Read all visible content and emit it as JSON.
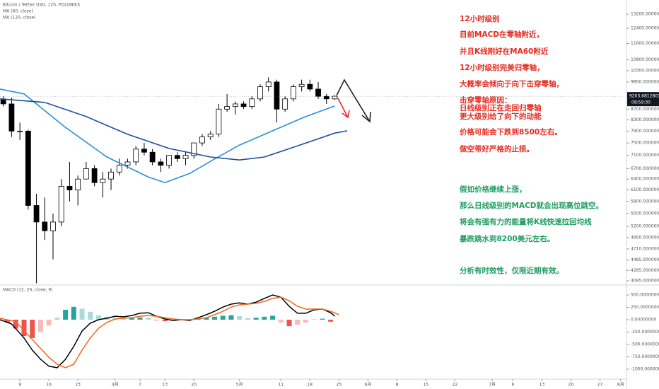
{
  "chart_data": [
    {
      "type": "candlestick",
      "title": "Bitcoin / Tether USD, 12h, POLONIEX",
      "log_scale": true,
      "ylim": [
        4032,
        14045
      ],
      "yticks": [
        {
          "value": 4095,
          "label": "4095.00000000"
        },
        {
          "value": 4285,
          "label": "4285.00000000"
        },
        {
          "value": 4485,
          "label": "4485.00000000"
        },
        {
          "value": 4710,
          "label": "4710.00000000"
        },
        {
          "value": 4950,
          "label": "4950.00000000"
        },
        {
          "value": 5200,
          "label": "5200.00000000"
        },
        {
          "value": 5500,
          "label": "5500.00000000"
        },
        {
          "value": 5800,
          "label": "5800.00000000"
        },
        {
          "value": 6100,
          "label": "6100.00000000"
        },
        {
          "value": 6400,
          "label": "6400.00000000"
        },
        {
          "value": 6700,
          "label": "6700.00000000"
        },
        {
          "value": 7100,
          "label": "7100.00000000"
        },
        {
          "value": 7500,
          "label": "7500.00000000"
        },
        {
          "value": 7900,
          "label": "7900.00000000"
        },
        {
          "value": 8300,
          "label": "8300.00000000"
        },
        {
          "value": 8700,
          "label": "8700.00000000"
        },
        {
          "value": 9800,
          "label": "9800.00000000"
        },
        {
          "value": 10300,
          "label": "10300.00000000"
        },
        {
          "value": 10800,
          "label": "10800.00000000"
        },
        {
          "value": 11600,
          "label": "11600.00000000"
        },
        {
          "value": 12400,
          "label": "12400.00000000"
        },
        {
          "value": 13200,
          "label": "13200.00000000"
        }
      ],
      "x": [
        5,
        7,
        9,
        11,
        13,
        15,
        17,
        19,
        21,
        23,
        25,
        27,
        29,
        31,
        33,
        35,
        37,
        39,
        41,
        43,
        45,
        47,
        49,
        51,
        53,
        55,
        57,
        59,
        61,
        63,
        65,
        67,
        69,
        71,
        73,
        75,
        77,
        79,
        81,
        83,
        85
      ],
      "open": [
        9100,
        8900,
        7900,
        7900,
        5700,
        5300,
        5100,
        5300,
        6200,
        6100,
        6400,
        6700,
        6300,
        6400,
        6600,
        6800,
        6900,
        7300,
        7200,
        6900,
        6800,
        7100,
        7000,
        7100,
        7500,
        7700,
        7800,
        8700,
        8800,
        8900,
        8800,
        9100,
        9600,
        9800,
        8700,
        9100,
        9600,
        9700,
        9500,
        9200,
        9100
      ],
      "high": [
        9200,
        9150,
        8200,
        7950,
        6000,
        5900,
        5500,
        6400,
        6900,
        6500,
        6900,
        6800,
        6600,
        6700,
        7000,
        7000,
        7400,
        7500,
        7300,
        7000,
        7100,
        7200,
        7200,
        7500,
        7800,
        7900,
        8900,
        9300,
        9000,
        9000,
        9200,
        9700,
        10000,
        9900,
        9200,
        9700,
        9900,
        9900,
        9800,
        9300,
        9250
      ],
      "low": [
        8800,
        7700,
        7600,
        5600,
        4050,
        4900,
        4500,
        5200,
        5800,
        5700,
        6400,
        6200,
        5900,
        6100,
        6500,
        6700,
        6800,
        7100,
        6800,
        6600,
        6700,
        6900,
        6800,
        7000,
        7400,
        7600,
        7700,
        8600,
        8500,
        8700,
        8700,
        9000,
        9400,
        8200,
        8600,
        9000,
        9400,
        9400,
        9100,
        8900,
        9050
      ],
      "close": [
        8900,
        7900,
        7900,
        5700,
        5300,
        5100,
        5300,
        6200,
        6100,
        6400,
        6700,
        6300,
        6400,
        6600,
        6800,
        6900,
        7300,
        7200,
        6900,
        6800,
        7100,
        7000,
        7100,
        7500,
        7700,
        7800,
        8700,
        8800,
        8900,
        8800,
        9100,
        9600,
        9800,
        8700,
        9100,
        9600,
        9700,
        9500,
        9200,
        9100,
        9204
      ],
      "up_color": "#ffffff",
      "down_color": "#000000",
      "series": [
        {
          "name": "MA (60, close)",
          "color": "#2a8fd6",
          "x": [
            4.2,
            10,
            20,
            30,
            40,
            44,
            50,
            56,
            62,
            70,
            78,
            85
          ],
          "values": [
            9500,
            9300,
            8030,
            7050,
            6460,
            6300,
            6560,
            6990,
            7430,
            7910,
            8420,
            8820
          ]
        },
        {
          "name": "MA (120, close)",
          "color": "#1e4f9c",
          "x": [
            4.2,
            15,
            25,
            35,
            45,
            55,
            62,
            68,
            75,
            85,
            88
          ],
          "values": [
            9100,
            8960,
            8420,
            7790,
            7320,
            7050,
            6960,
            7050,
            7360,
            7830,
            7910
          ]
        }
      ],
      "price_label": 9203.68128014,
      "time_label": "08:59:30",
      "annotations": [
        {
          "text": "12小时级别",
          "color": "#e52b22"
        },
        {
          "text": "目前MACD在零轴附近，",
          "color": "#e52b22"
        },
        {
          "text": "并且K线刚好在MA60附近",
          "color": "#e52b22"
        },
        {
          "text": "12小时级别完美归零轴，",
          "color": "#e52b22"
        },
        {
          "text": "大概率会倾向于向下击穿零轴，",
          "color": "#e52b22"
        },
        {
          "text": "击穿零轴原因：",
          "color": "#e52b22"
        },
        {
          "text": "日线级别正在走回归零轴",
          "color": "#e52b22"
        },
        {
          "text": "更大级别给了向下的动能",
          "color": "#e52b22"
        },
        {
          "text": "价格可能会下跌到8500左右。",
          "color": "#e52b22"
        },
        {
          "text": "做空带好严格的止损。",
          "color": "#e52b22"
        },
        {
          "text": "假如价格继续上涨，",
          "color": "#1f9d62"
        },
        {
          "text": "那么日线级别的MACD就会出现高位跳空。",
          "color": "#1f9d62"
        },
        {
          "text": "将会有强有力的能量将K线快速拉回均线",
          "color": "#1f9d62"
        },
        {
          "text": "暴跌跳水到8200美元左右。",
          "color": "#1f9d62"
        },
        {
          "text": "分析有时效性，仅限近期有效。",
          "color": "#1f9d62"
        }
      ]
    },
    {
      "type": "macd",
      "title": "MACD (12, 26, close, 9)",
      "ylim": [
        -1186,
        686
      ],
      "yticks": [
        {
          "value": 500,
          "label": "500.00000000"
        },
        {
          "value": 250,
          "label": "250.00000000"
        },
        {
          "value": 0,
          "label": "0.00000000"
        },
        {
          "value": -250,
          "label": "-250.00000000"
        },
        {
          "value": -500,
          "label": "-500.00000000"
        },
        {
          "value": -750,
          "label": "-750.00000000"
        },
        {
          "value": -1000,
          "label": "-1000.00000000"
        }
      ],
      "xlim": [
        4.2,
        155.4
      ],
      "xticks": [
        {
          "value": 9,
          "label": "9"
        },
        {
          "value": 16,
          "label": "16"
        },
        {
          "value": 23,
          "label": "23"
        },
        {
          "value": 32,
          "label": "4月"
        },
        {
          "value": 38,
          "label": "7"
        },
        {
          "value": 44,
          "label": "13"
        },
        {
          "value": 51,
          "label": "20"
        },
        {
          "value": 62,
          "label": "5月"
        },
        {
          "value": 72,
          "label": "11"
        },
        {
          "value": 79,
          "label": "18"
        },
        {
          "value": 86,
          "label": "25"
        },
        {
          "value": 93,
          "label": "6月"
        },
        {
          "value": 100,
          "label": "8"
        },
        {
          "value": 107,
          "label": "15"
        },
        {
          "value": 114,
          "label": "22"
        },
        {
          "value": 123,
          "label": "7月"
        },
        {
          "value": 128,
          "label": "6"
        },
        {
          "value": 135,
          "label": "13"
        },
        {
          "value": 142,
          "label": "20"
        },
        {
          "value": 149,
          "label": "27"
        },
        {
          "value": 154,
          "label": "8月"
        }
      ],
      "series": [
        {
          "type": "bar",
          "color": "#26a69a",
          "negative_color": "#ef5350",
          "x": [
            4,
            6,
            8,
            10,
            12,
            14,
            16,
            18,
            20,
            22,
            24,
            26,
            28,
            30,
            32,
            34,
            36,
            38,
            40,
            42,
            44,
            46,
            48,
            50,
            52,
            54,
            56,
            58,
            60,
            62,
            64,
            66,
            68,
            70,
            72,
            74,
            76,
            78,
            80,
            82,
            84
          ],
          "values": [
            -20,
            -60,
            -180,
            -330,
            -370,
            -250,
            -120,
            40,
            200,
            260,
            220,
            160,
            90,
            60,
            30,
            20,
            30,
            45,
            40,
            -20,
            -30,
            -20,
            10,
            -10,
            20,
            40,
            60,
            80,
            90,
            70,
            30,
            40,
            60,
            80,
            -60,
            -130,
            -100,
            -60,
            10,
            20,
            -40
          ]
        },
        {
          "type": "line",
          "color": "#000000",
          "x": [
            4.2,
            7,
            10,
            12,
            14,
            16,
            18,
            20,
            22,
            24,
            26,
            28,
            30,
            32,
            34,
            36,
            38,
            40,
            42,
            44,
            46,
            48,
            50,
            52,
            54,
            56,
            58,
            60,
            62,
            64,
            66,
            68,
            70,
            72,
            74,
            76,
            78,
            80,
            82,
            84,
            85
          ],
          "values": [
            0,
            -85,
            -370,
            -615,
            -800,
            -940,
            -970,
            -800,
            -540,
            -230,
            -70,
            0,
            30,
            70,
            57,
            85,
            130,
            140,
            70,
            15,
            -15,
            0,
            -15,
            40,
            100,
            170,
            255,
            315,
            340,
            315,
            355,
            430,
            500,
            455,
            270,
            130,
            130,
            200,
            215,
            140,
            70
          ]
        },
        {
          "type": "line",
          "color": "#f2661c",
          "x": [
            4.2,
            8,
            12,
            16,
            18,
            20,
            22,
            24,
            26,
            28,
            30,
            32,
            34,
            36,
            38,
            40,
            42,
            44,
            46,
            48,
            50,
            52,
            54,
            56,
            58,
            60,
            62,
            64,
            66,
            68,
            70,
            72,
            74,
            76,
            78,
            80,
            82,
            84,
            86
          ],
          "values": [
            30,
            -40,
            -400,
            -760,
            -900,
            -970,
            -900,
            -615,
            -370,
            -170,
            -55,
            15,
            30,
            40,
            70,
            85,
            70,
            40,
            15,
            0,
            0,
            15,
            40,
            100,
            170,
            255,
            300,
            315,
            330,
            370,
            430,
            455,
            385,
            270,
            215,
            215,
            215,
            170,
            100
          ]
        }
      ]
    }
  ]
}
